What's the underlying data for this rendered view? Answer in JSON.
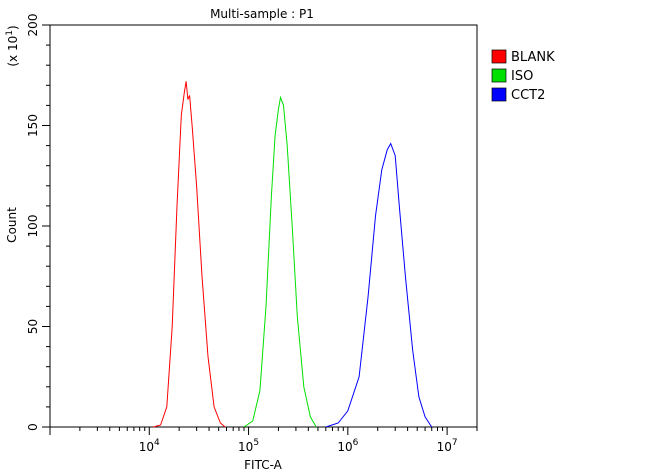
{
  "chart_data": {
    "type": "line",
    "title": "Multi-sample : P1",
    "xlabel": "FITC-A",
    "ylabel": "Count",
    "y_multiplier_label": "(x 10",
    "y_multiplier_exp": "1",
    "x_scale": "log",
    "xlim": [
      1000,
      20000000
    ],
    "ylim": [
      0,
      200
    ],
    "x_ticks": [
      {
        "value": 10000,
        "base": "10",
        "exp": "4"
      },
      {
        "value": 100000,
        "base": "10",
        "exp": "5"
      },
      {
        "value": 1000000,
        "base": "10",
        "exp": "6"
      },
      {
        "value": 10000000,
        "base": "10",
        "exp": "7"
      }
    ],
    "y_ticks": [
      "0",
      "50",
      "100",
      "150",
      "200"
    ],
    "grid": false,
    "legend_position": "right",
    "series": [
      {
        "name": "BLANK",
        "color": "#ff0000",
        "points": [
          [
            11000,
            0
          ],
          [
            13000,
            1
          ],
          [
            15000,
            10
          ],
          [
            17000,
            50
          ],
          [
            19000,
            110
          ],
          [
            21000,
            155
          ],
          [
            22500,
            166
          ],
          [
            23500,
            172
          ],
          [
            24500,
            163
          ],
          [
            25500,
            165
          ],
          [
            27000,
            150
          ],
          [
            30000,
            120
          ],
          [
            34000,
            75
          ],
          [
            39000,
            35
          ],
          [
            45000,
            10
          ],
          [
            52000,
            2
          ],
          [
            58000,
            0
          ]
        ]
      },
      {
        "name": "ISO",
        "color": "#00e000",
        "points": [
          [
            90000,
            0
          ],
          [
            110000,
            3
          ],
          [
            130000,
            18
          ],
          [
            150000,
            60
          ],
          [
            170000,
            115
          ],
          [
            185000,
            145
          ],
          [
            200000,
            158
          ],
          [
            210000,
            164
          ],
          [
            225000,
            160
          ],
          [
            245000,
            140
          ],
          [
            275000,
            100
          ],
          [
            310000,
            55
          ],
          [
            360000,
            20
          ],
          [
            420000,
            5
          ],
          [
            480000,
            0
          ]
        ]
      },
      {
        "name": "CCT2",
        "color": "#0000ff",
        "points": [
          [
            600000,
            0
          ],
          [
            800000,
            2
          ],
          [
            1000000,
            8
          ],
          [
            1300000,
            25
          ],
          [
            1600000,
            65
          ],
          [
            1900000,
            105
          ],
          [
            2200000,
            128
          ],
          [
            2500000,
            138
          ],
          [
            2700000,
            141
          ],
          [
            3000000,
            135
          ],
          [
            3300000,
            110
          ],
          [
            3800000,
            75
          ],
          [
            4500000,
            38
          ],
          [
            5200000,
            15
          ],
          [
            6000000,
            5
          ],
          [
            7000000,
            0
          ]
        ]
      }
    ]
  }
}
